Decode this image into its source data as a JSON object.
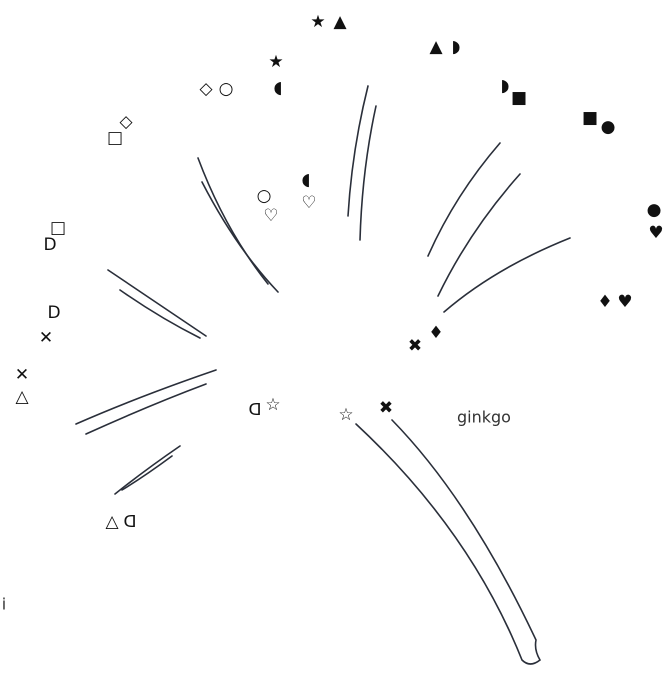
{
  "symbols": [
    "★",
    "▲",
    "▲",
    "◗",
    "◗",
    "■",
    "■",
    "●",
    "●",
    "♥",
    "♦",
    "♥",
    "✖",
    "♦",
    "✖",
    "☆",
    "ᗡ",
    "☆",
    "△",
    "ᗡ",
    "✕",
    "△",
    "D",
    "✕",
    "□",
    "D",
    "□",
    "◇",
    "◇",
    "○",
    "★",
    "◖",
    "○",
    "♡",
    "◖",
    "♡"
  ],
  "labels": {
    "center": "ginkgo",
    "edge": "i"
  }
}
